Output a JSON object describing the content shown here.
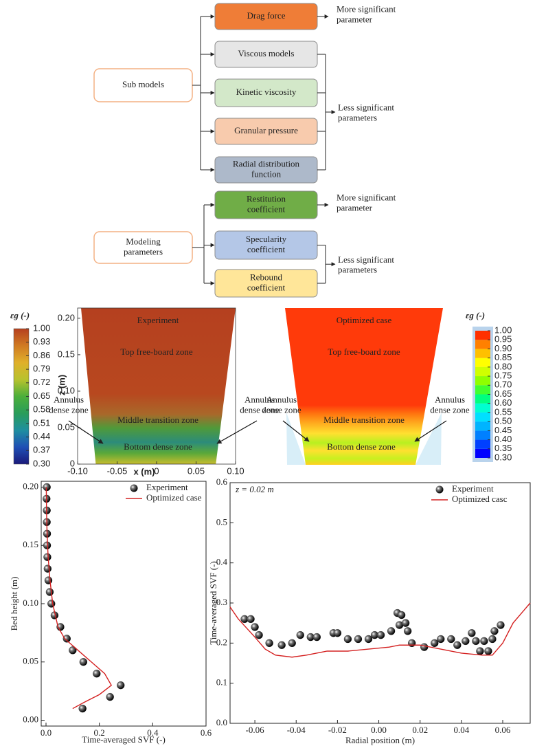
{
  "diagram": {
    "groups": [
      {
        "label": "Sub models",
        "tiers": [
          {
            "note": "More significant\nparameter",
            "items": [
              {
                "label": "Drag force",
                "color": "#ef7d37"
              }
            ]
          },
          {
            "note": "Less significant\nparameters",
            "items": [
              {
                "label": "Viscous models",
                "color": "#e6e6e6"
              },
              {
                "label": "Kinetic viscosity",
                "color": "#d3e8c9"
              },
              {
                "label": "Granular pressure",
                "color": "#f8cbad"
              },
              {
                "label": "Radial distribution\nfunction",
                "color": "#adb9ca"
              }
            ]
          }
        ]
      },
      {
        "label": "Modeling\nparameters",
        "tiers": [
          {
            "note": "More significant\nparameter",
            "items": [
              {
                "label": "Restitution\ncoefficient",
                "color": "#70ad47"
              }
            ]
          },
          {
            "note": "Less significant\nparameters",
            "items": [
              {
                "label": "Specularity\ncoefficient",
                "color": "#b4c7e7"
              },
              {
                "label": "Rebound\ncoefficient",
                "color": "#ffe699"
              }
            ]
          }
        ]
      }
    ]
  },
  "contours": [
    {
      "title": "Experiment",
      "zones": [
        "Top free-board zone",
        "Middle transition zone",
        "Bottom dense zone"
      ],
      "annotations": [
        "Annulus\ndense zone",
        "Annulus\ndense zone"
      ],
      "xlabel": "x (m)",
      "ylabel": "z (m)",
      "xlim": [
        -0.1,
        0.1
      ],
      "ylim": [
        0,
        0.214
      ],
      "xticks": [
        {
          "value": -0.1,
          "label": "-0.10"
        },
        -0.05,
        0,
        0.05,
        {
          "value": 0.1,
          "label": "0.10"
        }
      ],
      "yticks": [
        0,
        0.05,
        {
          "value": 0.1,
          "label": "0.10"
        },
        0.15,
        {
          "value": 0.2,
          "label": "0.20"
        }
      ],
      "colorbar": {
        "label": "εg (-)",
        "lim": [
          0.3,
          1.0
        ],
        "ticks": [
          {
            "value": 1.0,
            "label": "1.00"
          },
          0.93,
          0.86,
          0.79,
          0.72,
          0.65,
          0.58,
          0.51,
          0.44,
          0.37,
          {
            "value": 0.3,
            "label": "0.30"
          }
        ],
        "colors": [
          "#1b1a7a",
          "#1f4fb5",
          "#1f8fa0",
          "#2a9d5a",
          "#4caf3a",
          "#b8c22e",
          "#e0b02a",
          "#d07a22",
          "#b5401f"
        ]
      }
    },
    {
      "title": "Optimized case",
      "zones": [
        "Top free-board zone",
        "Middle transition zone",
        "Bottom dense zone"
      ],
      "annotations": [
        "Annulus\ndense zone",
        "Annulus\ndense zone"
      ],
      "colorbar": {
        "label": "εg (-)",
        "lim": [
          0.3,
          1.0
        ],
        "ticks": [
          {
            "value": 1.0,
            "label": "1.00"
          },
          0.95,
          {
            "value": 0.9,
            "label": "0.90"
          },
          0.85,
          {
            "value": 0.8,
            "label": "0.80"
          },
          0.75,
          {
            "value": 0.7,
            "label": "0.70"
          },
          0.65,
          {
            "value": 0.6,
            "label": "0.60"
          },
          0.55,
          {
            "value": 0.5,
            "label": "0.50"
          },
          0.45,
          {
            "value": 0.4,
            "label": "0.40"
          },
          0.35,
          {
            "value": 0.3,
            "label": "0.30"
          }
        ],
        "colors": [
          "#0000ff",
          "#0040ff",
          "#0080ff",
          "#00b4ff",
          "#00e0ff",
          "#00ffd0",
          "#00ff80",
          "#40ff30",
          "#90ff00",
          "#d0ff00",
          "#ffff00",
          "#ffc000",
          "#ff8000",
          "#ff3000"
        ]
      }
    }
  ],
  "chart_data": [
    {
      "type": "scatter",
      "xlabel": "Time-averaged SVF (-)",
      "ylabel": "Bed height (m)",
      "xlim": [
        -0.018,
        0.6
      ],
      "ylim": [
        -0.005,
        0.205
      ],
      "xticks": [
        {
          "value": 0,
          "label": "0.0"
        },
        0.2,
        0.4,
        0.6
      ],
      "yticks": [
        {
          "value": 0,
          "label": "0.00"
        },
        0.05,
        {
          "value": 0.1,
          "label": "0.10"
        },
        0.15,
        {
          "value": 0.2,
          "label": "0.20"
        }
      ],
      "legend": "upper right",
      "series": [
        {
          "name": "Experiment",
          "style": "marker",
          "color": "#111111",
          "x": [
            0.003,
            0.002,
            0.003,
            0.003,
            0.004,
            0.004,
            0.005,
            0.006,
            0.009,
            0.014,
            0.02,
            0.032,
            0.054,
            0.078,
            0.1,
            0.14,
            0.19,
            0.28,
            0.24,
            0.137
          ],
          "values": [
            0.2,
            0.19,
            0.18,
            0.17,
            0.16,
            0.15,
            0.14,
            0.13,
            0.12,
            0.11,
            0.1,
            0.09,
            0.08,
            0.07,
            0.06,
            0.05,
            0.04,
            0.03,
            0.02,
            0.01
          ]
        },
        {
          "name": "Optimized case",
          "style": "line",
          "color": "#d42020",
          "x": [
            0.1,
            0.14,
            0.2,
            0.245,
            0.22,
            0.17,
            0.12,
            0.07,
            0.045,
            0.025,
            0.015,
            0.008,
            0.004,
            0.002,
            0.001
          ],
          "values": [
            0.01,
            0.015,
            0.022,
            0.03,
            0.04,
            0.05,
            0.06,
            0.07,
            0.08,
            0.1,
            0.12,
            0.14,
            0.16,
            0.18,
            0.2
          ]
        }
      ]
    },
    {
      "type": "scatter",
      "annotation": "z = 0.02 m",
      "xlabel": "Radial position (m)",
      "ylabel": "Time-averaged SVF (-)",
      "xlim": [
        -0.072,
        0.0733
      ],
      "ylim": [
        0,
        0.6
      ],
      "xticks": [
        -0.06,
        -0.04,
        -0.02,
        {
          "value": 0,
          "label": "0.00"
        },
        0.02,
        0.04,
        0.06
      ],
      "yticks": [
        {
          "value": 0,
          "label": "0.0"
        },
        0.1,
        0.2,
        0.3,
        0.4,
        0.5,
        0.6
      ],
      "legend": "upper right",
      "series": [
        {
          "name": "Experiment",
          "style": "marker",
          "color": "#111111",
          "x": [
            -0.065,
            -0.062,
            -0.06,
            -0.058,
            -0.053,
            -0.047,
            -0.042,
            -0.038,
            -0.033,
            -0.03,
            -0.022,
            -0.02,
            -0.015,
            -0.01,
            -0.005,
            -0.002,
            0.001,
            0.006,
            0.009,
            0.011,
            0.01,
            0.013,
            0.014,
            0.016,
            0.022,
            0.027,
            0.03,
            0.035,
            0.038,
            0.042,
            0.045,
            0.047,
            0.049,
            0.051,
            0.053,
            0.055,
            0.056,
            0.059
          ],
          "values": [
            0.26,
            0.26,
            0.24,
            0.22,
            0.2,
            0.195,
            0.2,
            0.22,
            0.215,
            0.215,
            0.225,
            0.225,
            0.21,
            0.21,
            0.21,
            0.22,
            0.22,
            0.23,
            0.275,
            0.27,
            0.245,
            0.25,
            0.23,
            0.2,
            0.19,
            0.2,
            0.21,
            0.21,
            0.195,
            0.205,
            0.225,
            0.205,
            0.18,
            0.205,
            0.18,
            0.21,
            0.23,
            0.245
          ]
        },
        {
          "name": "Optimized casc",
          "style": "line",
          "color": "#d42020",
          "x": [
            -0.072,
            -0.068,
            -0.06,
            -0.055,
            -0.05,
            -0.042,
            -0.035,
            -0.025,
            -0.015,
            -0.005,
            0.005,
            0.01,
            0.02,
            0.03,
            0.04,
            0.05,
            0.055,
            0.06,
            0.065,
            0.0733
          ],
          "values": [
            0.29,
            0.26,
            0.215,
            0.185,
            0.17,
            0.165,
            0.17,
            0.18,
            0.18,
            0.185,
            0.19,
            0.195,
            0.195,
            0.185,
            0.175,
            0.17,
            0.17,
            0.2,
            0.25,
            0.3
          ]
        }
      ]
    }
  ]
}
